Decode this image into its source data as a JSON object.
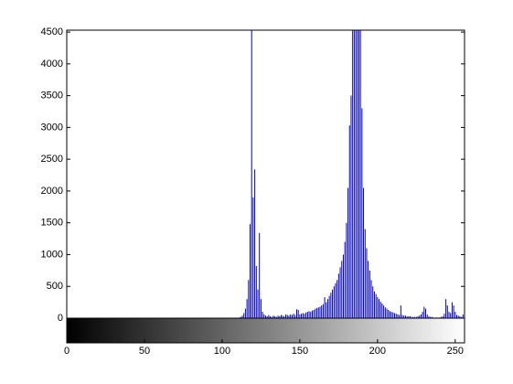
{
  "chart_data": {
    "type": "stem",
    "color": "#0000cc",
    "xlim": [
      0,
      256
    ],
    "xticks": [
      0,
      50,
      100,
      150,
      200,
      250
    ],
    "ylim": [
      0,
      4530
    ],
    "yticks": [
      0,
      500,
      1000,
      1500,
      2000,
      2500,
      3000,
      3500,
      4000,
      4500
    ],
    "values": [
      0,
      0,
      0,
      0,
      0,
      0,
      0,
      0,
      0,
      0,
      0,
      0,
      0,
      0,
      0,
      0,
      0,
      0,
      0,
      0,
      0,
      0,
      0,
      0,
      0,
      0,
      0,
      0,
      0,
      0,
      0,
      0,
      0,
      0,
      0,
      0,
      0,
      0,
      0,
      0,
      0,
      0,
      0,
      0,
      0,
      0,
      0,
      0,
      0,
      0,
      0,
      0,
      0,
      0,
      0,
      0,
      0,
      0,
      0,
      0,
      0,
      0,
      0,
      0,
      0,
      0,
      0,
      0,
      0,
      0,
      0,
      0,
      0,
      0,
      0,
      0,
      0,
      0,
      0,
      0,
      0,
      0,
      0,
      0,
      0,
      0,
      0,
      0,
      0,
      0,
      0,
      0,
      0,
      0,
      0,
      0,
      0,
      0,
      0,
      0,
      0,
      0,
      0,
      0,
      0,
      0,
      0,
      0,
      0,
      0,
      5,
      10,
      20,
      40,
      80,
      150,
      300,
      600,
      1480,
      4600,
      1900,
      2340,
      820,
      450,
      1340,
      300,
      100,
      60,
      40,
      30,
      50,
      30,
      20,
      40,
      30,
      20,
      40,
      30,
      50,
      40,
      30,
      60,
      50,
      40,
      60,
      50,
      70,
      50,
      140,
      130,
      60,
      70,
      80,
      70,
      90,
      100,
      110,
      100,
      120,
      130,
      150,
      160,
      170,
      180,
      200,
      220,
      330,
      250,
      300,
      350,
      400,
      450,
      500,
      550,
      600,
      700,
      800,
      900,
      1000,
      1200,
      1500,
      2050,
      3030,
      3500,
      4600,
      4600,
      4600,
      4600,
      4600,
      4600,
      3300,
      2050,
      1400,
      1100,
      900,
      750,
      600,
      500,
      420,
      380,
      330,
      300,
      260,
      230,
      200,
      170,
      150,
      130,
      110,
      100,
      90,
      80,
      70,
      60,
      50,
      200,
      50,
      40,
      40,
      30,
      30,
      30,
      20,
      20,
      20,
      20,
      30,
      40,
      60,
      100,
      180,
      150,
      60,
      30,
      20,
      20,
      10,
      10,
      10,
      10,
      10,
      20,
      30,
      70,
      300,
      200,
      100,
      80,
      250,
      200,
      100,
      50,
      40,
      30,
      20,
      60
    ]
  }
}
